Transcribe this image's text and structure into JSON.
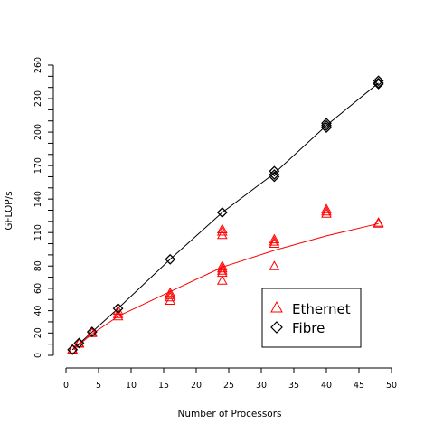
{
  "chart_data": {
    "type": "scatter",
    "xlabel": "Number of Processors",
    "ylabel": "GFLOP/s",
    "xlim": [
      0,
      50
    ],
    "ylim": [
      0,
      260
    ],
    "x_ticks": [
      0,
      5,
      10,
      15,
      20,
      25,
      30,
      35,
      40,
      45,
      50
    ],
    "y_ticks": [
      0,
      20,
      40,
      60,
      80,
      110,
      140,
      170,
      200,
      230,
      260
    ],
    "y_ticks_unlabeled": [
      10,
      30,
      50,
      70,
      90,
      100,
      120,
      130,
      150,
      160,
      180,
      190,
      210,
      220,
      240,
      250
    ],
    "grid": false,
    "legend_position": "bottom-right",
    "series": [
      {
        "name": "Ethernet",
        "marker": "triangle",
        "color": "#ff0000",
        "points": [
          [
            1,
            5
          ],
          [
            1,
            5.5
          ],
          [
            2,
            11
          ],
          [
            2,
            10.5
          ],
          [
            4,
            21
          ],
          [
            4,
            20
          ],
          [
            8,
            40
          ],
          [
            8,
            37
          ],
          [
            8,
            35
          ],
          [
            16,
            56
          ],
          [
            16,
            54
          ],
          [
            16,
            52
          ],
          [
            16,
            49
          ],
          [
            24,
            113
          ],
          [
            24,
            111
          ],
          [
            24,
            108
          ],
          [
            24,
            80
          ],
          [
            24,
            78
          ],
          [
            24,
            76
          ],
          [
            24,
            74
          ],
          [
            24,
            67
          ],
          [
            32,
            104
          ],
          [
            32,
            102
          ],
          [
            32,
            100
          ],
          [
            32,
            80
          ],
          [
            40,
            131
          ],
          [
            40,
            129
          ],
          [
            40,
            127
          ],
          [
            48,
            119
          ],
          [
            48,
            118
          ]
        ],
        "fit": [
          [
            1,
            5
          ],
          [
            4,
            19
          ],
          [
            8,
            35
          ],
          [
            16,
            57
          ],
          [
            24,
            79
          ],
          [
            32,
            94
          ],
          [
            40,
            107
          ],
          [
            48,
            118
          ]
        ]
      },
      {
        "name": "Fibre",
        "marker": "diamond",
        "color": "#000000",
        "points": [
          [
            1,
            5
          ],
          [
            2,
            11
          ],
          [
            4,
            21
          ],
          [
            8,
            42
          ],
          [
            16,
            86
          ],
          [
            24,
            128
          ],
          [
            32,
            165
          ],
          [
            32,
            162
          ],
          [
            32,
            160
          ],
          [
            40,
            208
          ],
          [
            40,
            206
          ],
          [
            40,
            204
          ],
          [
            48,
            246
          ],
          [
            48,
            244
          ],
          [
            48,
            243
          ]
        ],
        "fit": [
          [
            1,
            5
          ],
          [
            8,
            42
          ],
          [
            16,
            86
          ],
          [
            24,
            128
          ],
          [
            32,
            163
          ],
          [
            40,
            206
          ],
          [
            48,
            244
          ]
        ]
      }
    ]
  }
}
